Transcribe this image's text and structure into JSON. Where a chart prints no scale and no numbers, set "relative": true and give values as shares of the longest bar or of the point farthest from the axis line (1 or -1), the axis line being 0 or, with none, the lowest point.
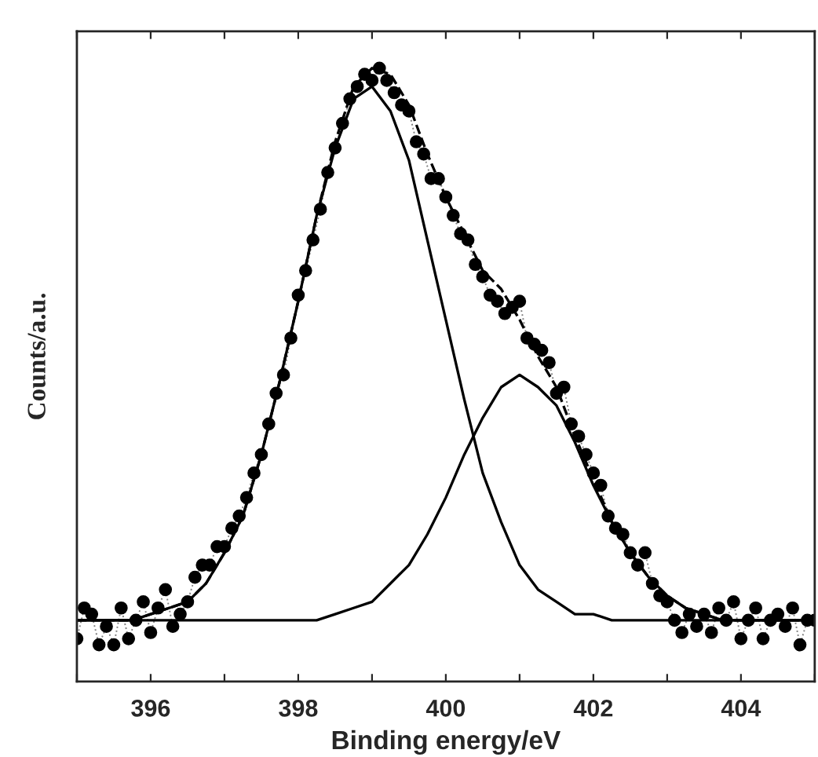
{
  "chart_data": {
    "type": "line",
    "relative": true,
    "xlabel": "Binding energy/eV",
    "ylabel": "Counts/a.u.",
    "xlim": [
      395,
      405
    ],
    "xticks": [
      {
        "value": 395,
        "label": null
      },
      396,
      {
        "value": 397,
        "label": null
      },
      398,
      {
        "value": 399,
        "label": null
      },
      400,
      {
        "value": 401,
        "label": null
      },
      402,
      {
        "value": 403,
        "label": null
      },
      404,
      {
        "value": 405,
        "label": null
      }
    ],
    "grid": false,
    "legend": false,
    "series": [
      {
        "marker": "circle",
        "line_style": "dotted",
        "color": "#000000",
        "x": [
          395.0,
          395.1,
          395.2,
          395.3,
          395.4,
          395.5,
          395.6,
          395.7,
          395.8,
          395.9,
          396.0,
          396.1,
          396.2,
          396.3,
          396.4,
          396.5,
          396.6,
          396.7,
          396.8,
          396.9,
          397.0,
          397.1,
          397.2,
          397.3,
          397.4,
          397.5,
          397.6,
          397.7,
          397.8,
          397.9,
          398.0,
          398.1,
          398.2,
          398.3,
          398.4,
          398.5,
          398.6,
          398.7,
          398.8,
          398.9,
          399.0,
          399.1,
          399.2,
          399.3,
          399.4,
          399.5,
          399.6,
          399.7,
          399.8,
          399.9,
          400.0,
          400.1,
          400.2,
          400.3,
          400.4,
          400.5,
          400.6,
          400.7,
          400.8,
          400.9,
          401.0,
          401.1,
          401.2,
          401.3,
          401.4,
          401.5,
          401.6,
          401.7,
          401.8,
          401.9,
          402.0,
          402.1,
          402.2,
          402.3,
          402.4,
          402.5,
          402.6,
          402.7,
          402.8,
          402.9,
          403.0,
          403.1,
          403.2,
          403.3,
          403.4,
          403.5,
          403.6,
          403.7,
          403.8,
          403.9,
          404.0,
          404.1,
          404.2,
          404.3,
          404.4,
          404.5,
          404.6,
          404.7,
          404.8,
          404.9,
          405.0
        ],
        "values": [
          0.07,
          0.12,
          0.11,
          0.06,
          0.09,
          0.06,
          0.12,
          0.07,
          0.1,
          0.13,
          0.08,
          0.12,
          0.15,
          0.09,
          0.11,
          0.13,
          0.17,
          0.19,
          0.19,
          0.22,
          0.22,
          0.25,
          0.27,
          0.3,
          0.34,
          0.37,
          0.42,
          0.47,
          0.5,
          0.56,
          0.63,
          0.67,
          0.72,
          0.77,
          0.83,
          0.87,
          0.91,
          0.95,
          0.97,
          0.99,
          0.98,
          1.0,
          0.98,
          0.96,
          0.94,
          0.93,
          0.88,
          0.86,
          0.82,
          0.82,
          0.79,
          0.76,
          0.73,
          0.72,
          0.68,
          0.66,
          0.63,
          0.62,
          0.6,
          0.61,
          0.62,
          0.56,
          0.55,
          0.54,
          0.52,
          0.47,
          0.48,
          0.42,
          0.4,
          0.37,
          0.34,
          0.32,
          0.27,
          0.25,
          0.24,
          0.21,
          0.19,
          0.21,
          0.16,
          0.14,
          0.13,
          0.1,
          0.08,
          0.11,
          0.09,
          0.11,
          0.08,
          0.12,
          0.1,
          0.13,
          0.07,
          0.1,
          0.12,
          0.07,
          0.1,
          0.11,
          0.09,
          0.12,
          0.06,
          0.1,
          0.1
        ]
      },
      {
        "marker": "none",
        "line_style": "dashed",
        "color": "#000000",
        "x": [
          395,
          395.25,
          395.5,
          395.75,
          396,
          396.25,
          396.5,
          396.75,
          397,
          397.25,
          397.5,
          397.75,
          398,
          398.25,
          398.5,
          398.75,
          399,
          399.25,
          399.5,
          399.75,
          400,
          400.25,
          400.5,
          400.75,
          401,
          401.25,
          401.5,
          401.75,
          402,
          402.25,
          402.5,
          402.75,
          403,
          403.25,
          403.5,
          403.75,
          404,
          404.25,
          404.5,
          404.75,
          405
        ],
        "values": [
          0.1,
          0.1,
          0.1,
          0.1,
          0.11,
          0.12,
          0.13,
          0.16,
          0.21,
          0.27,
          0.37,
          0.49,
          0.62,
          0.76,
          0.88,
          0.97,
          1.0,
          0.99,
          0.94,
          0.86,
          0.79,
          0.73,
          0.67,
          0.64,
          0.59,
          0.53,
          0.48,
          0.4,
          0.33,
          0.26,
          0.21,
          0.17,
          0.14,
          0.12,
          0.11,
          0.1,
          0.1,
          0.1,
          0.1,
          0.1,
          0.1
        ]
      },
      {
        "type": "line",
        "marker": "none",
        "line_style": "solid",
        "color": "#000000",
        "x": [
          395,
          395.25,
          395.5,
          395.75,
          396,
          396.25,
          396.5,
          396.75,
          397,
          397.25,
          397.5,
          397.75,
          398,
          398.25,
          398.5,
          398.75,
          399,
          399.25,
          399.5,
          399.75,
          400,
          400.25,
          400.5,
          400.75,
          401,
          401.25,
          401.5,
          401.75,
          402,
          402.25,
          402.5,
          402.75,
          403,
          403.25,
          403.5,
          403.75,
          404,
          404.25,
          404.5,
          404.75,
          405
        ],
        "values": [
          0.1,
          0.1,
          0.1,
          0.1,
          0.11,
          0.12,
          0.13,
          0.16,
          0.21,
          0.27,
          0.37,
          0.49,
          0.62,
          0.76,
          0.87,
          0.95,
          0.97,
          0.93,
          0.85,
          0.72,
          0.59,
          0.46,
          0.34,
          0.26,
          0.19,
          0.15,
          0.13,
          0.11,
          0.11,
          0.1,
          0.1,
          0.1,
          0.1,
          0.1,
          0.1,
          0.1,
          0.1,
          0.1,
          0.1,
          0.1,
          0.1
        ]
      },
      {
        "type": "line",
        "marker": "none",
        "line_style": "solid",
        "color": "#000000",
        "x": [
          395,
          395.25,
          395.5,
          395.75,
          396,
          396.25,
          396.5,
          396.75,
          397,
          397.25,
          397.5,
          397.75,
          398,
          398.25,
          398.5,
          398.75,
          399,
          399.25,
          399.5,
          399.75,
          400,
          400.25,
          400.5,
          400.75,
          401,
          401.25,
          401.5,
          401.75,
          402,
          402.25,
          402.5,
          402.75,
          403,
          403.25,
          403.5,
          403.75,
          404,
          404.25,
          404.5,
          404.75,
          405
        ],
        "values": [
          0.1,
          0.1,
          0.1,
          0.1,
          0.1,
          0.1,
          0.1,
          0.1,
          0.1,
          0.1,
          0.1,
          0.1,
          0.1,
          0.1,
          0.11,
          0.12,
          0.13,
          0.16,
          0.19,
          0.24,
          0.3,
          0.37,
          0.43,
          0.48,
          0.5,
          0.48,
          0.45,
          0.39,
          0.32,
          0.26,
          0.21,
          0.17,
          0.14,
          0.12,
          0.11,
          0.1,
          0.1,
          0.1,
          0.1,
          0.1,
          0.1
        ]
      }
    ]
  }
}
